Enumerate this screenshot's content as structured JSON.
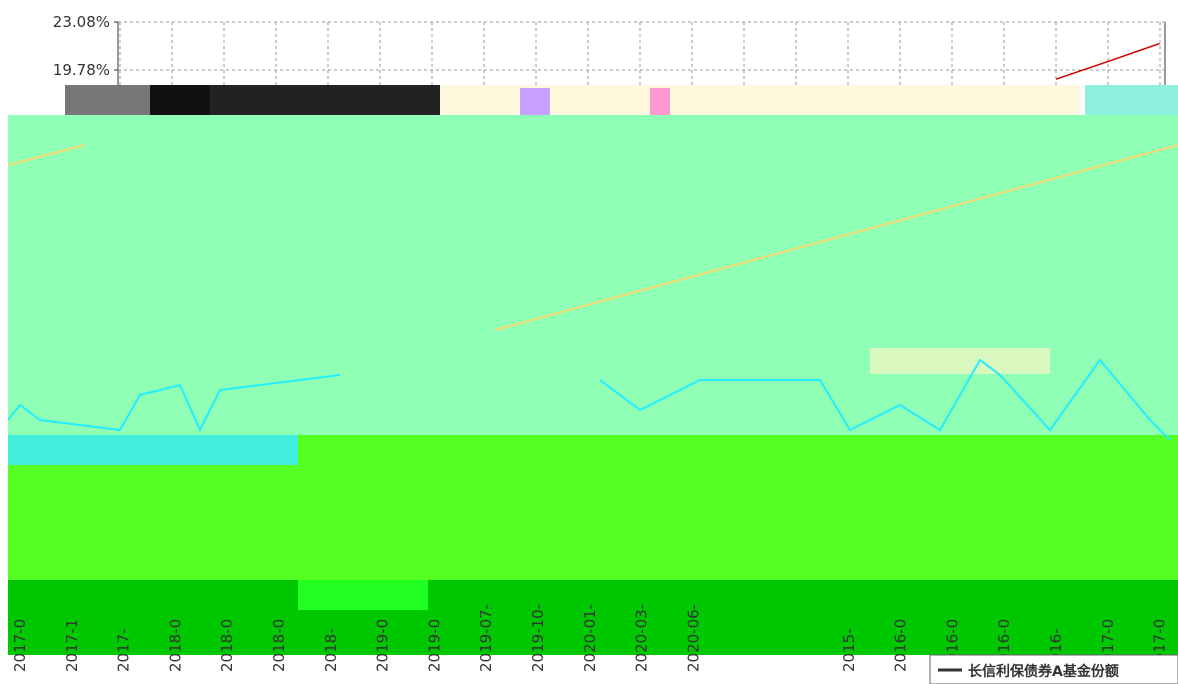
{
  "chart_data": {
    "type": "line",
    "categories": [
      "2017-0",
      "2017-1",
      "2017-",
      "2018-0",
      "2018-0",
      "2018-0",
      "2018-",
      "2019-0",
      "2019-0",
      "2019-07-",
      "2019-10-",
      "2020-01-",
      "2020-03-",
      "2020-06-",
      null,
      null,
      "2015-",
      "2016-0",
      "2016-0",
      "2016-0",
      "2016-",
      "2017-0",
      "2017-0"
    ],
    "series": [
      {
        "name": "长信利保债券A基金份额",
        "color": "#cc0000",
        "values": [
          null,
          null,
          null,
          null,
          null,
          null,
          null,
          null,
          null,
          null,
          null,
          null,
          null,
          null,
          null,
          null,
          null,
          null,
          null,
          null,
          19.15,
          20.36,
          21.6
        ]
      }
    ],
    "ylim": [
      10.0,
      23.08
    ],
    "yticks": [
      {
        "value": 23.08,
        "label": "23.08%"
      },
      {
        "value": 19.78,
        "label": "19.78%"
      }
    ],
    "grid": true
  }
}
